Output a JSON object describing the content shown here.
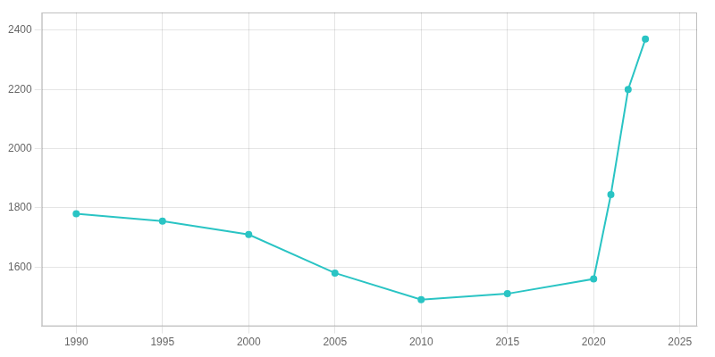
{
  "chart_data": {
    "type": "line",
    "x": [
      1990,
      1995,
      2000,
      2005,
      2010,
      2015,
      2020,
      2021,
      2022,
      2023
    ],
    "values": [
      1780,
      1755,
      1710,
      1580,
      1490,
      1510,
      1560,
      1845,
      2200,
      2370
    ],
    "color": "#2AC4C4",
    "marker": "o",
    "xlim": [
      1988,
      2026
    ],
    "ylim": [
      1400,
      2460
    ],
    "xticks": [
      1990,
      1995,
      2000,
      2005,
      2010,
      2015,
      2020,
      2025
    ],
    "yticks": [
      1600,
      1800,
      2000,
      2200,
      2400
    ],
    "grid": true
  }
}
